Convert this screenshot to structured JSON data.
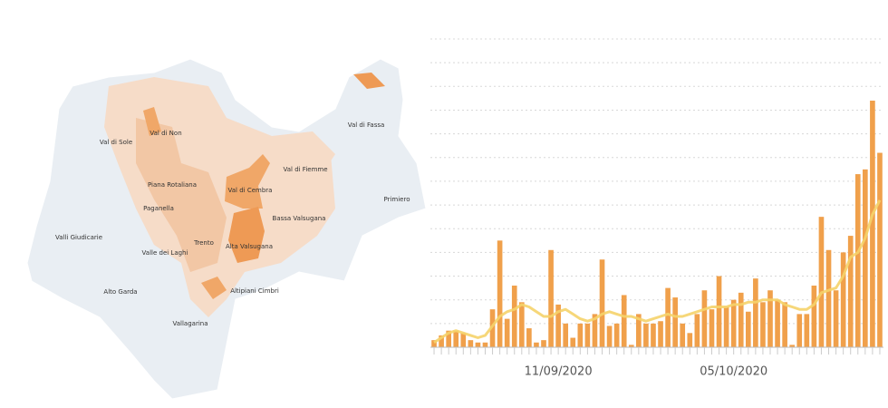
{
  "map": {
    "labels": [
      "Val di Sole",
      "Val di Non",
      "Val di Fassa",
      "Val di Fiemme",
      "Primiero",
      "Piana Rotaliana",
      "Val di Cembra",
      "Paganella",
      "Bassa Valsugana",
      "Valli Giudicarie",
      "Valle dei Laghi",
      "Trento",
      "Alta Valsugana",
      "Alto Garda",
      "Altipiani Cimbri",
      "Vallagarina"
    ]
  },
  "chart_data": {
    "type": "bar",
    "categories": [
      null,
      null,
      null,
      null,
      null,
      null,
      null,
      null,
      null,
      null,
      null,
      null,
      null,
      null,
      null,
      null,
      null,
      "11/09/2020",
      null,
      null,
      null,
      null,
      null,
      null,
      null,
      null,
      null,
      null,
      null,
      null,
      null,
      null,
      null,
      null,
      null,
      null,
      null,
      null,
      null,
      null,
      null,
      "05/10/2020",
      null,
      null,
      null,
      null,
      null,
      null,
      null,
      null,
      null,
      null,
      null,
      null,
      null,
      null,
      null,
      null,
      null,
      null,
      null,
      null
    ],
    "series": [
      {
        "type": "bar",
        "color": "#f0a04b",
        "values": [
          0.3,
          0.5,
          0.7,
          0.7,
          0.6,
          0.3,
          0.2,
          0.2,
          1.6,
          4.5,
          1.2,
          2.6,
          1.9,
          0.8,
          0.2,
          0.3,
          4.1,
          1.8,
          1.0,
          0.4,
          1.0,
          1.0,
          1.4,
          3.7,
          0.9,
          1.0,
          2.2,
          0.1,
          1.4,
          1.0,
          1.0,
          1.1,
          2.5,
          2.1,
          1.0,
          0.6,
          1.4,
          2.4,
          1.6,
          3.0,
          1.7,
          2.0,
          2.3,
          1.5,
          2.9,
          1.9,
          2.4,
          2.0,
          1.9,
          0.1,
          1.4,
          1.4,
          2.6,
          5.5,
          4.1,
          2.4,
          4.0,
          4.7,
          7.3,
          7.5,
          10.4,
          8.2
        ]
      },
      {
        "type": "line",
        "color": "#f5d36a",
        "values": [
          0.2,
          0.4,
          0.6,
          0.7,
          0.6,
          0.5,
          0.4,
          0.5,
          0.9,
          1.3,
          1.5,
          1.6,
          1.8,
          1.7,
          1.5,
          1.3,
          1.3,
          1.5,
          1.6,
          1.4,
          1.2,
          1.1,
          1.2,
          1.4,
          1.5,
          1.4,
          1.3,
          1.3,
          1.2,
          1.1,
          1.2,
          1.3,
          1.4,
          1.3,
          1.3,
          1.4,
          1.5,
          1.6,
          1.7,
          1.7,
          1.7,
          1.8,
          1.8,
          1.9,
          1.9,
          2.0,
          2.0,
          2.0,
          1.8,
          1.7,
          1.6,
          1.6,
          1.8,
          2.3,
          2.4,
          2.5,
          3.0,
          3.8,
          4.0,
          4.6,
          5.6,
          6.2
        ]
      }
    ],
    "ylim": [
      0,
      13
    ],
    "yticks": [
      0,
      1,
      2,
      3,
      4,
      5,
      6,
      7,
      8,
      9,
      10,
      11,
      12,
      13
    ],
    "grid": true
  }
}
